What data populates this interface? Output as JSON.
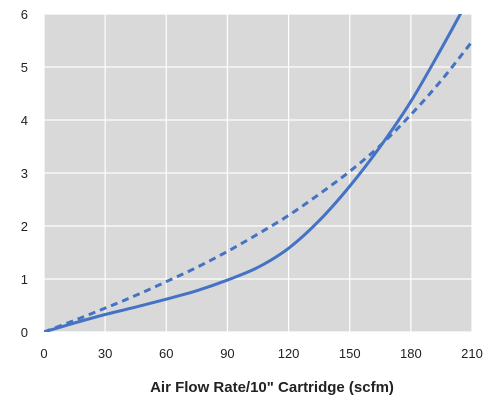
{
  "chart_data": {
    "type": "line",
    "title": "",
    "xlabel": "Air Flow Rate/10\" Cartridge (scfm)",
    "ylabel": "",
    "xlim": [
      0,
      210
    ],
    "ylim": [
      0,
      6
    ],
    "x_ticks": [
      "0",
      "30",
      "60",
      "90",
      "120",
      "150",
      "180",
      "210"
    ],
    "y_ticks": [
      "0",
      "1",
      "2",
      "3",
      "4",
      "5",
      "6"
    ],
    "grid": true,
    "legend": "none",
    "colors": {
      "plot_background": "#d9d9d9",
      "gridline": "#ffffff",
      "series": "#4472c4"
    },
    "series": [
      {
        "style": "solid",
        "x": [
          0,
          15,
          30,
          45,
          60,
          75,
          90,
          105,
          120,
          135,
          150,
          165,
          180,
          195,
          205
        ],
        "y": [
          0,
          0.17,
          0.33,
          0.47,
          0.62,
          0.78,
          0.98,
          1.22,
          1.58,
          2.1,
          2.75,
          3.5,
          4.35,
          5.35,
          6.05
        ]
      },
      {
        "style": "dashed",
        "x": [
          0,
          15,
          30,
          45,
          60,
          75,
          90,
          105,
          120,
          135,
          150,
          165,
          180,
          195,
          210
        ],
        "y": [
          0,
          0.22,
          0.45,
          0.69,
          0.95,
          1.22,
          1.52,
          1.85,
          2.2,
          2.6,
          3.03,
          3.52,
          4.1,
          4.75,
          5.48
        ]
      }
    ]
  }
}
